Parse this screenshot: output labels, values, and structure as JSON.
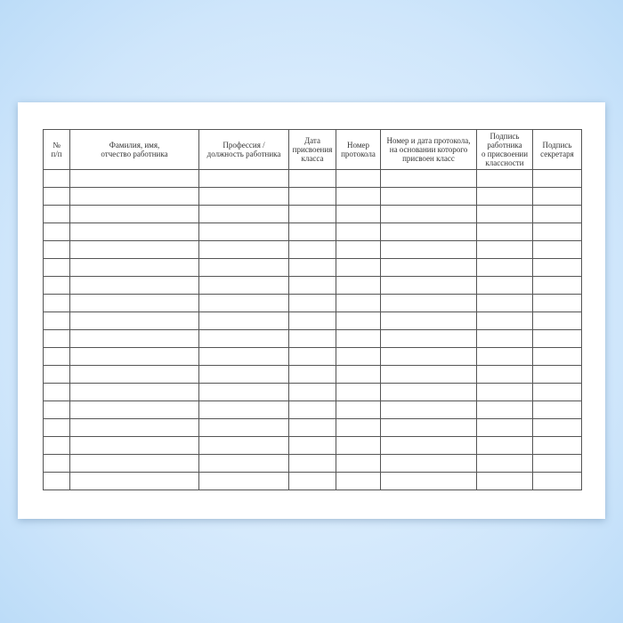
{
  "form": {
    "columns": [
      "№\nп/п",
      "Фамилия, имя,\nотчество работника",
      "Профессия /\nдолжность работника",
      "Дата\nприсвоения\nкласса",
      "Номер\nпротокола",
      "Номер и дата протокола,\nна основании которого\nприсвоен класс",
      "Подпись\nработника\nо присвоении\nклассности",
      "Подпись\nсекретаря"
    ],
    "row_count": 18
  }
}
